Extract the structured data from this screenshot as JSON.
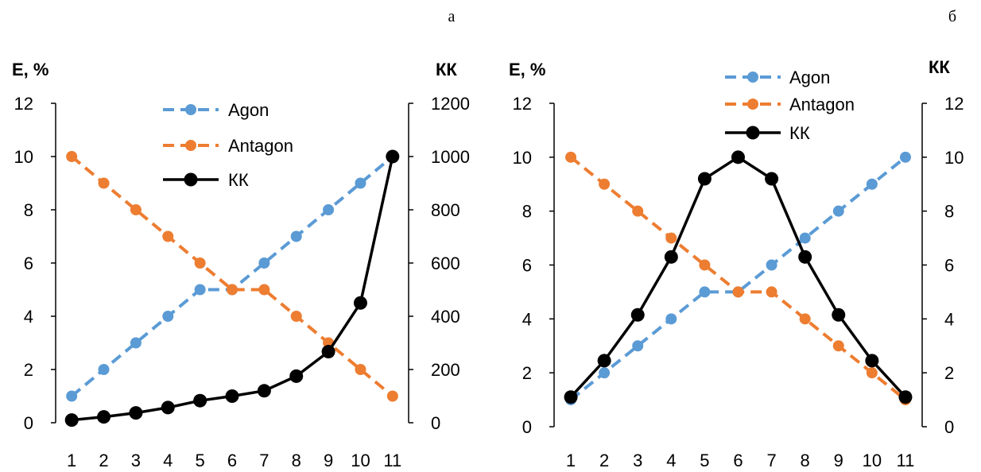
{
  "panel_labels": [
    "а",
    "б"
  ],
  "chart_data": [
    {
      "type": "line",
      "panel": "а",
      "x": [
        1,
        2,
        3,
        4,
        5,
        6,
        7,
        8,
        9,
        10,
        11
      ],
      "y_left_label": "Е, %",
      "y_right_label": "КК",
      "y_left_ticks": [
        "0",
        "2",
        "4",
        "6",
        "8",
        "10",
        "12"
      ],
      "y_right_ticks": [
        "0",
        "200",
        "400",
        "600",
        "800",
        "1000",
        "1200"
      ],
      "y_left_range": [
        0,
        12
      ],
      "y_right_range": [
        0,
        1200
      ],
      "legend_position": "top-center",
      "series": [
        {
          "name": "Agon",
          "axis": "left",
          "color": "#5b9bd5",
          "dash": true,
          "values": [
            1,
            2,
            3,
            4,
            5,
            5,
            6,
            7,
            8,
            9,
            10
          ]
        },
        {
          "name": "Antagon",
          "axis": "left",
          "color": "#ed7d31",
          "dash": true,
          "values": [
            10,
            9,
            8,
            7,
            6,
            5,
            5,
            4,
            3,
            2,
            1
          ]
        },
        {
          "name": "КК",
          "axis": "right",
          "color": "#000000",
          "dash": false,
          "values": [
            10,
            22,
            37,
            57,
            83,
            100,
            120,
            175,
            267,
            450,
            1000
          ]
        }
      ]
    },
    {
      "type": "line",
      "panel": "б",
      "x": [
        1,
        2,
        3,
        4,
        5,
        6,
        7,
        8,
        9,
        10,
        11
      ],
      "y_left_label": "Е, %",
      "y_right_label": "КК",
      "y_left_ticks": [
        "0",
        "2",
        "4",
        "6",
        "8",
        "10",
        "12"
      ],
      "y_right_ticks": [
        "0",
        "2",
        "4",
        "6",
        "8",
        "10",
        "12"
      ],
      "y_left_range": [
        0,
        12
      ],
      "y_right_range": [
        0,
        12
      ],
      "legend_position": "top-right",
      "series": [
        {
          "name": "Agon",
          "axis": "left",
          "color": "#5b9bd5",
          "dash": true,
          "values": [
            1,
            2,
            3,
            4,
            5,
            5,
            6,
            7,
            8,
            9,
            10
          ]
        },
        {
          "name": "Antagon",
          "axis": "left",
          "color": "#ed7d31",
          "dash": true,
          "values": [
            10,
            9,
            8,
            7,
            6,
            5,
            5,
            4,
            3,
            2,
            1
          ]
        },
        {
          "name": "КК",
          "axis": "right",
          "color": "#000000",
          "dash": false,
          "values": [
            1.1,
            2.45,
            4.15,
            6.3,
            9.2,
            10,
            9.2,
            6.3,
            4.15,
            2.45,
            1.1
          ]
        }
      ]
    }
  ]
}
